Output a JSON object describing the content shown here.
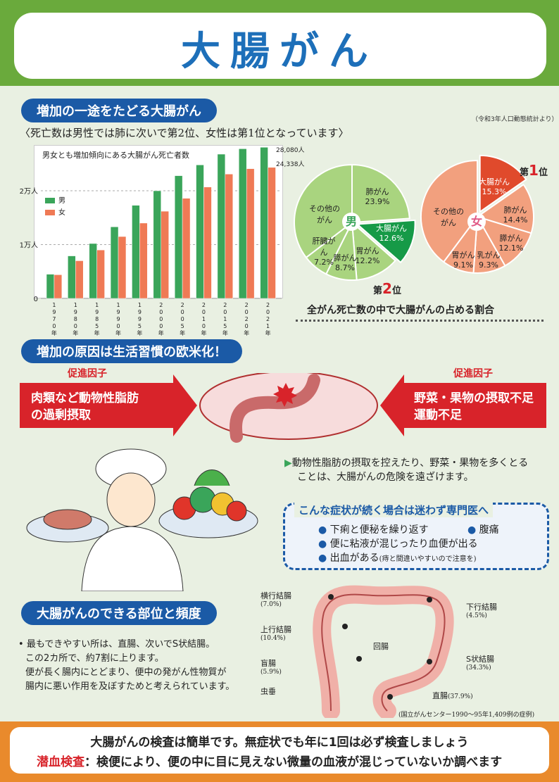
{
  "header": {
    "title": "大腸がん"
  },
  "section1": {
    "title": "増加の一途をたどる大腸がん",
    "source": "（令和3年人口動態統計より）",
    "subtitle": "〈死亡数は男性では肺に次いで第2位、女性は第1位となっています〉"
  },
  "chart_data": [
    {
      "type": "bar",
      "title": "男女とも増加傾向にある大腸がん死亡者数",
      "categories": [
        "1970年",
        "1980年",
        "1985年",
        "1990年",
        "1995年",
        "2000年",
        "2005年",
        "2010年",
        "2015年",
        "2020年",
        "2021年"
      ],
      "category_chars": [
        [
          "1",
          "9",
          "7",
          "0",
          "年"
        ],
        [
          "1",
          "9",
          "8",
          "0",
          "年"
        ],
        [
          "1",
          "9",
          "8",
          "5",
          "年"
        ],
        [
          "1",
          "9",
          "9",
          "0",
          "年"
        ],
        [
          "1",
          "9",
          "9",
          "5",
          "年"
        ],
        [
          "2",
          "0",
          "0",
          "0",
          "年"
        ],
        [
          "2",
          "0",
          "0",
          "5",
          "年"
        ],
        [
          "2",
          "0",
          "1",
          "0",
          "年"
        ],
        [
          "2",
          "0",
          "1",
          "5",
          "年"
        ],
        [
          "2",
          "0",
          "2",
          "0",
          "年"
        ],
        [
          "2",
          "0",
          "2",
          "1",
          "年"
        ]
      ],
      "series": [
        {
          "name": "男",
          "values": [
            4500,
            7900,
            10200,
            13300,
            17300,
            20000,
            22800,
            24800,
            26800,
            27800,
            28080
          ],
          "color": "#3aa55a"
        },
        {
          "name": "女",
          "values": [
            4400,
            7000,
            9000,
            11500,
            14000,
            16200,
            18600,
            20700,
            23100,
            24100,
            24338
          ],
          "color": "#ef7a55"
        }
      ],
      "ylim": [
        0,
        28500
      ],
      "yticks": [
        {
          "value": 0,
          "label": "0"
        },
        {
          "value": 10000,
          "label": "1万人"
        },
        {
          "value": 20000,
          "label": "2万人"
        }
      ],
      "annotations": [
        "28,080人",
        "24,338人"
      ]
    },
    {
      "type": "pie",
      "title": "全がん死亡数の中で大腸がんの占める割合",
      "center_label": "男",
      "slices": [
        {
          "label": "肺がん",
          "value": 23.9,
          "text": "23.9%"
        },
        {
          "label": "大腸がん",
          "value": 12.6,
          "text": "12.6%",
          "highlight": true
        },
        {
          "label": "胃がん",
          "value": 12.2,
          "text": "12.2%"
        },
        {
          "label": "膵がん",
          "value": 8.7,
          "text": "8.7%"
        },
        {
          "label": "肝臓がん",
          "value": 7.2,
          "text": "7.2%"
        },
        {
          "label": "その他のがん",
          "value": 35.4,
          "text": ""
        }
      ],
      "rank": {
        "prefix": "第",
        "num": "2",
        "suffix": "位"
      }
    },
    {
      "type": "pie",
      "center_label": "女",
      "slices": [
        {
          "label": "大腸がん",
          "value": 15.3,
          "text": "15.3%",
          "highlight": true
        },
        {
          "label": "肺がん",
          "value": 14.4,
          "text": "14.4%"
        },
        {
          "label": "膵がん",
          "value": 12.1,
          "text": "12.1%"
        },
        {
          "label": "乳がん",
          "value": 9.3,
          "text": "9.3%"
        },
        {
          "label": "胃がん",
          "value": 9.1,
          "text": "9.1%"
        },
        {
          "label": "その他のがん",
          "value": 39.8,
          "text": ""
        }
      ],
      "rank": {
        "prefix": "第",
        "num": "1",
        "suffix": "位"
      }
    }
  ],
  "pies": {
    "caption": "全がん死亡数の中で大腸がんの占める割合",
    "male": {
      "center": "男",
      "labels": {
        "lung": "肺がん",
        "lung_v": "23.9%",
        "colon": "大腸がん",
        "colon_v": "12.6%",
        "stomach": "胃がん",
        "stomach_v": "12.2%",
        "pancreas": "膵がん",
        "pancreas_v": "8.7%",
        "liver": "肝臓がん",
        "liver_v": "7.2%",
        "other1": "その他の",
        "other2": "がん"
      },
      "rank_prefix": "第",
      "rank_num": "2",
      "rank_suffix": "位"
    },
    "female": {
      "center": "女",
      "labels": {
        "colon": "大腸がん",
        "colon_v": "15.3%",
        "lung": "肺がん",
        "lung_v": "14.4%",
        "pancreas": "膵がん",
        "pancreas_v": "12.1%",
        "breast": "乳がん",
        "breast_v": "9.3%",
        "stomach": "胃がん",
        "stomach_v": "9.1%",
        "other1": "その他の",
        "other2": "がん"
      },
      "rank_prefix": "第",
      "rank_num": "1",
      "rank_suffix": "位"
    }
  },
  "legend": {
    "male": "男",
    "female": "女"
  },
  "section2": {
    "title": "増加の原因は生活習慣の欧米化！",
    "left_label": "促進因子",
    "left_line1": "肉類など動物性脂肪",
    "left_line2": "の過剰摂取",
    "right_label": "促進因子",
    "right_line1": "野菜・果物の摂取不足",
    "right_line2": "運動不足",
    "advice_line1": "動物性脂肪の摂取を控えたり、野菜・果物を多くとる",
    "advice_line2": "ことは、大腸がんの危険を遠ざけます。"
  },
  "symptoms": {
    "title": "こんな症状が続く場合は迷わず専門医へ",
    "bullet": "●",
    "item1": "下痢と便秘を繰り返す",
    "item2": "腹痛",
    "item3": "便に粘液が混じったり血便が出る",
    "item4": "出血がある",
    "item4_note": "(痔と間違いやすいので注意を)"
  },
  "section3": {
    "title": "大腸がんのできる部位と頻度",
    "line1": "最もできやすい所は、直腸、次いでS状結腸。",
    "line2": "この2カ所で、約7割に上ります。",
    "line3": "便が長く腸内にとどまり、便中の発がん性物質が",
    "line4": "腸内に悪い作用を及ぼすためと考えられています。",
    "bullet": "•",
    "source": "(国立がんセンター1990～95年1,409例の症例)"
  },
  "colon_labels": {
    "transverse": "横行結腸",
    "transverse_p": "(7.0%)",
    "descending": "下行結腸",
    "descending_p": "(4.5%)",
    "ascending": "上行結腸",
    "ascending_p": "(10.4%)",
    "ileum": "回腸",
    "cecum": "盲腸",
    "cecum_p": "(5.9%)",
    "sigmoid": "S状結腸",
    "sigmoid_p": "(34.3%)",
    "rectum": "直腸",
    "rectum_p": "(37.9%)",
    "appendix": "虫垂"
  },
  "footer": {
    "line1": "大腸がんの検査は簡単です。無症状でも年に1回は必ず検査しましょう",
    "label": "潜血検査",
    "line2": "：検便により、便の中に目に見えない微量の血液が混じっていないか調べます"
  }
}
